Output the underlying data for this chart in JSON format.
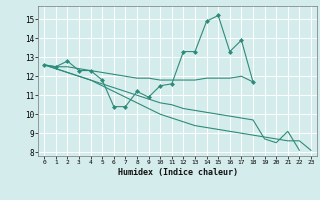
{
  "xlabel": "Humidex (Indice chaleur)",
  "ylabel": "",
  "background_color": "#d5ecec",
  "grid_color": "#ffffff",
  "line_color": "#2e8b7a",
  "xlim": [
    -0.5,
    23.5
  ],
  "ylim": [
    7.8,
    15.7
  ],
  "yticks": [
    8,
    9,
    10,
    11,
    12,
    13,
    14,
    15
  ],
  "xticks": [
    0,
    1,
    2,
    3,
    4,
    5,
    6,
    7,
    8,
    9,
    10,
    11,
    12,
    13,
    14,
    15,
    16,
    17,
    18,
    19,
    20,
    21,
    22,
    23
  ],
  "x": [
    0,
    1,
    2,
    3,
    4,
    5,
    6,
    7,
    8,
    9,
    10,
    11,
    12,
    13,
    14,
    15,
    16,
    17,
    18,
    19,
    20,
    21,
    22,
    23
  ],
  "y_line1": [
    12.6,
    12.5,
    12.8,
    12.3,
    12.3,
    11.8,
    10.4,
    10.4,
    11.2,
    10.9,
    11.5,
    11.6,
    13.3,
    13.3,
    14.9,
    15.2,
    13.3,
    13.9,
    11.7,
    null,
    null,
    null,
    null,
    null
  ],
  "y_line2": [
    12.6,
    12.5,
    12.5,
    12.4,
    12.3,
    12.2,
    12.1,
    12.0,
    11.9,
    11.9,
    11.8,
    11.8,
    11.8,
    11.8,
    11.9,
    11.9,
    11.9,
    12.0,
    11.7,
    null,
    null,
    null,
    null,
    null
  ],
  "y_line3": [
    12.6,
    12.4,
    12.2,
    12.0,
    11.8,
    11.5,
    11.2,
    10.9,
    10.6,
    10.3,
    10.0,
    9.8,
    9.6,
    9.4,
    9.3,
    9.2,
    9.1,
    9.0,
    8.9,
    8.8,
    8.7,
    8.6,
    8.6,
    8.1
  ],
  "y_line4": [
    12.6,
    12.4,
    12.2,
    12.0,
    11.8,
    11.6,
    11.4,
    11.2,
    11.0,
    10.8,
    10.6,
    10.5,
    10.3,
    10.2,
    10.1,
    10.0,
    9.9,
    9.8,
    9.7,
    8.7,
    8.5,
    9.1,
    8.1,
    null
  ]
}
